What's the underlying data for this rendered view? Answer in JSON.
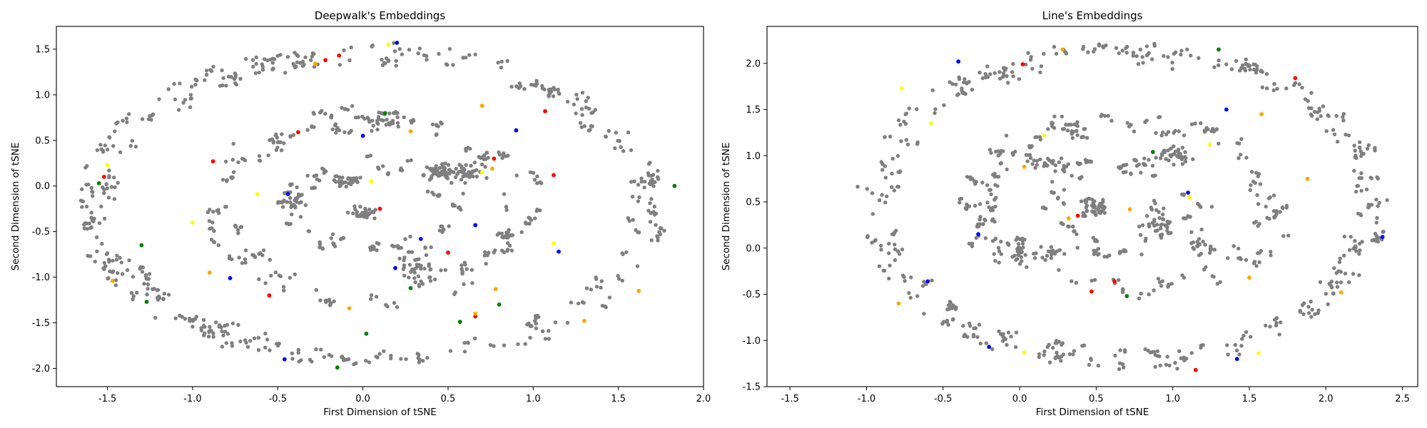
{
  "chart_data": [
    {
      "type": "scatter",
      "title": "Deepwalk's Embeddings",
      "xlabel": "First Dimension of tSNE",
      "ylabel": "Second Dimension of tSNE",
      "xlim": [
        -1.8,
        2.0
      ],
      "ylim": [
        -2.2,
        1.75
      ],
      "xticks": [
        "-1.5",
        "-1.0",
        "-0.5",
        "0.0",
        "0.5",
        "1.0",
        "1.5",
        "2.0"
      ],
      "xtick_values": [
        -1.5,
        -1.0,
        -0.5,
        0.0,
        0.5,
        1.0,
        1.5,
        2.0
      ],
      "yticks": [
        "-2.0",
        "-1.5",
        "-1.0",
        "-0.5",
        "0.0",
        "0.5",
        "1.0",
        "1.5"
      ],
      "ytick_values": [
        -2.0,
        -1.5,
        -1.0,
        -0.5,
        0.0,
        0.5,
        1.0,
        1.5
      ],
      "grid": false,
      "pattern": {
        "rings": [
          [
            1.72,
            1.78,
            0.0,
            200,
            1
          ],
          [
            1.02,
            1.1,
            0.6,
            110,
            2
          ],
          [
            0.55,
            0.58,
            1.1,
            50,
            3
          ]
        ],
        "center": [
          0.05,
          -0.22
        ],
        "clusters": [
          [
            0.45,
            0.15,
            0.1,
            0.12,
            45
          ],
          [
            0.0,
            -0.3,
            0.12,
            0.1,
            30
          ],
          [
            -0.1,
            0.05,
            0.15,
            0.12,
            35
          ],
          [
            0.3,
            -0.9,
            0.15,
            0.2,
            30
          ],
          [
            0.6,
            0.15,
            0.15,
            0.15,
            40
          ],
          [
            -0.4,
            -0.2,
            0.1,
            0.25,
            25
          ],
          [
            0.1,
            0.7,
            0.2,
            0.1,
            20
          ]
        ],
        "seed": 7
      },
      "series": [
        {
          "name": "",
          "color": "#7f7f7f"
        },
        {
          "name": "",
          "color": "#ff0000",
          "values": [
            [
              -1.52,
              0.1
            ],
            [
              -0.88,
              0.27
            ],
            [
              -0.38,
              0.59
            ],
            [
              -0.14,
              1.43
            ],
            [
              -0.22,
              1.38
            ],
            [
              0.1,
              -0.25
            ],
            [
              0.5,
              -0.73
            ],
            [
              0.77,
              0.3
            ],
            [
              1.07,
              0.82
            ],
            [
              1.12,
              0.12
            ],
            [
              -0.55,
              -1.2
            ],
            [
              0.66,
              -1.43
            ]
          ]
        },
        {
          "name": "",
          "color": "#0000ff",
          "values": [
            [
              0.2,
              1.57
            ],
            [
              -0.46,
              -1.9
            ],
            [
              -0.78,
              -1.01
            ],
            [
              0.34,
              -0.58
            ],
            [
              0.9,
              0.61
            ],
            [
              0.19,
              -0.9
            ],
            [
              0.66,
              -0.43
            ],
            [
              1.15,
              -0.72
            ],
            [
              -0.44,
              -0.09
            ],
            [
              0.0,
              0.55
            ]
          ]
        },
        {
          "name": "",
          "color": "#ffa500",
          "values": [
            [
              -1.47,
              -1.04
            ],
            [
              -0.28,
              1.34
            ],
            [
              -0.9,
              -0.95
            ],
            [
              0.28,
              0.6
            ],
            [
              0.7,
              0.88
            ],
            [
              1.3,
              -1.48
            ],
            [
              1.62,
              -1.15
            ],
            [
              0.78,
              -1.13
            ],
            [
              -0.08,
              -1.34
            ],
            [
              0.66,
              -1.4
            ],
            [
              0.76,
              0.19
            ]
          ]
        },
        {
          "name": "",
          "color": "#ffff00",
          "values": [
            [
              0.15,
              1.55
            ],
            [
              -1.5,
              0.23
            ],
            [
              -0.62,
              -0.09
            ],
            [
              0.05,
              0.05
            ],
            [
              1.12,
              -0.63
            ],
            [
              0.7,
              0.15
            ],
            [
              -1.0,
              -0.4
            ]
          ]
        },
        {
          "name": "",
          "color": "#008000",
          "values": [
            [
              -1.55,
              0.03
            ],
            [
              -1.3,
              -0.65
            ],
            [
              -1.27,
              -1.27
            ],
            [
              -0.15,
              -1.99
            ],
            [
              0.28,
              -1.12
            ],
            [
              0.02,
              -1.62
            ],
            [
              0.57,
              -1.49
            ],
            [
              0.8,
              -1.3
            ],
            [
              0.13,
              0.8
            ],
            [
              1.83,
              0.0
            ]
          ]
        }
      ]
    },
    {
      "type": "scatter",
      "title": "Line's Embeddings",
      "xlabel": "First Dimension of tSNE",
      "ylabel": "Second Dimension of tSNE",
      "xlim": [
        -1.65,
        2.6
      ],
      "ylim": [
        -1.5,
        2.4
      ],
      "xticks": [
        "-1.5",
        "-1.0",
        "-0.5",
        "0.0",
        "0.5",
        "1.0",
        "1.5",
        "2.0",
        "2.5"
      ],
      "xtick_values": [
        -1.5,
        -1.0,
        -0.5,
        0.0,
        0.5,
        1.0,
        1.5,
        2.0,
        2.5
      ],
      "yticks": [
        "-1.5",
        "-1.0",
        "-0.5",
        "0.0",
        "0.5",
        "1.0",
        "1.5",
        "2.0"
      ],
      "ytick_values": [
        -1.5,
        -1.0,
        -0.5,
        0.0,
        0.5,
        1.0,
        1.5,
        2.0
      ],
      "grid": false,
      "pattern": {
        "rings": [
          [
            1.72,
            1.76,
            0.0,
            190,
            1
          ],
          [
            1.1,
            1.05,
            0.5,
            110,
            2
          ],
          [
            0.6,
            0.55,
            1.3,
            50,
            3
          ]
        ],
        "center": [
          0.68,
          0.45
        ],
        "clusters": [
          [
            0.5,
            0.45,
            0.15,
            0.15,
            45
          ],
          [
            0.0,
            0.0,
            0.05,
            0.25,
            25
          ],
          [
            0.2,
            -0.05,
            0.15,
            0.1,
            20
          ],
          [
            1.0,
            1.0,
            0.2,
            0.15,
            35
          ],
          [
            0.2,
            0.9,
            0.2,
            0.15,
            30
          ],
          [
            0.9,
            0.3,
            0.15,
            0.3,
            35
          ],
          [
            1.2,
            0.0,
            0.15,
            0.2,
            20
          ]
        ],
        "seed": 13
      },
      "series": [
        {
          "name": "",
          "color": "#7f7f7f"
        },
        {
          "name": "",
          "color": "#ff0000",
          "values": [
            [
              0.02,
              1.99
            ],
            [
              1.8,
              1.84
            ],
            [
              0.47,
              -0.47
            ],
            [
              0.62,
              -0.36
            ],
            [
              1.15,
              -1.32
            ],
            [
              0.38,
              0.35
            ]
          ]
        },
        {
          "name": "",
          "color": "#0000ff",
          "values": [
            [
              -0.4,
              2.02
            ],
            [
              -0.6,
              -0.36
            ],
            [
              -0.27,
              0.15
            ],
            [
              -0.2,
              -1.07
            ],
            [
              1.42,
              -1.2
            ],
            [
              2.37,
              0.12
            ],
            [
              1.35,
              1.5
            ],
            [
              1.1,
              0.6
            ]
          ]
        },
        {
          "name": "",
          "color": "#ffa500",
          "values": [
            [
              0.28,
              2.15
            ],
            [
              1.58,
              1.45
            ],
            [
              -0.79,
              -0.6
            ],
            [
              0.03,
              0.88
            ],
            [
              0.32,
              0.32
            ],
            [
              0.72,
              0.42
            ],
            [
              1.5,
              -0.32
            ],
            [
              2.1,
              -0.48
            ],
            [
              1.88,
              0.75
            ]
          ]
        },
        {
          "name": "",
          "color": "#ffff00",
          "values": [
            [
              -0.77,
              1.73
            ],
            [
              -0.58,
              1.35
            ],
            [
              0.16,
              1.22
            ],
            [
              1.24,
              1.12
            ],
            [
              0.03,
              -1.13
            ],
            [
              1.11,
              0.55
            ],
            [
              1.56,
              -1.14
            ]
          ]
        },
        {
          "name": "",
          "color": "#008000",
          "values": [
            [
              1.3,
              2.15
            ],
            [
              0.7,
              -0.52
            ],
            [
              0.87,
              1.04
            ]
          ]
        }
      ]
    }
  ]
}
